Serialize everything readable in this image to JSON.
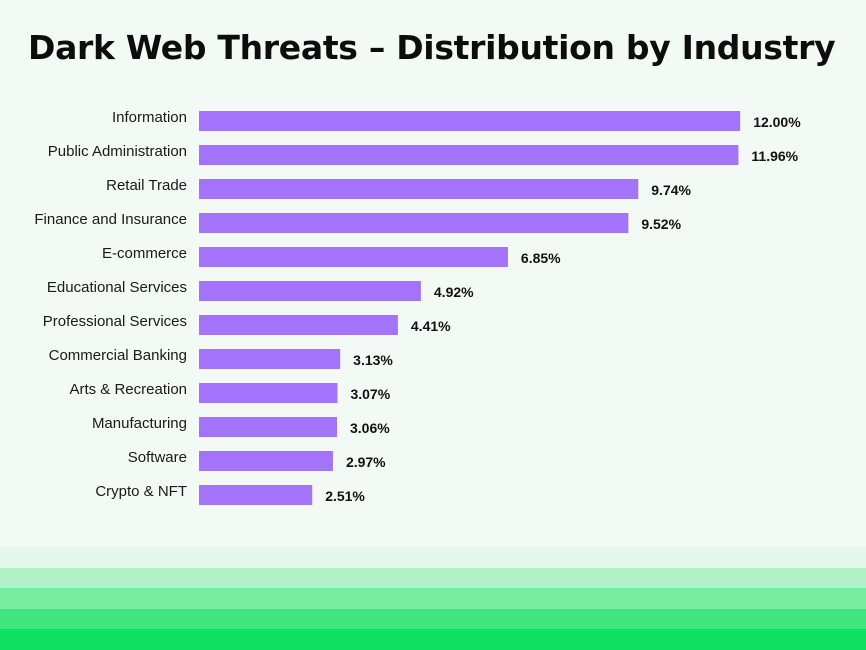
{
  "chart_data": {
    "type": "bar",
    "orientation": "horizontal",
    "title": "Dark Web Threats – Distribution by Industry",
    "categories": [
      "Information",
      "Public Administration",
      "Retail Trade",
      "Finance and Insurance",
      "E-commerce",
      "Educational Services",
      "Professional Services",
      "Commercial Banking",
      "Arts & Recreation",
      "Manufacturing",
      "Software",
      "Crypto & NFT"
    ],
    "values": [
      12.0,
      11.96,
      9.74,
      9.52,
      6.85,
      4.92,
      4.41,
      3.13,
      3.07,
      3.06,
      2.97,
      2.51
    ],
    "value_labels": [
      "12.00%",
      "11.96%",
      "9.74%",
      "9.52%",
      "6.85%",
      "4.92%",
      "4.41%",
      "3.13%",
      "3.07%",
      "3.06%",
      "2.97%",
      "2.51%"
    ],
    "xlim": [
      0,
      12
    ],
    "grid": false,
    "bar_color": "#a374fb"
  },
  "colors": {
    "background": "#f3f9f5",
    "stripes": [
      "#e3f7ea",
      "#b1f1c8",
      "#76eca1",
      "#3fe57e",
      "#10e05f"
    ]
  }
}
